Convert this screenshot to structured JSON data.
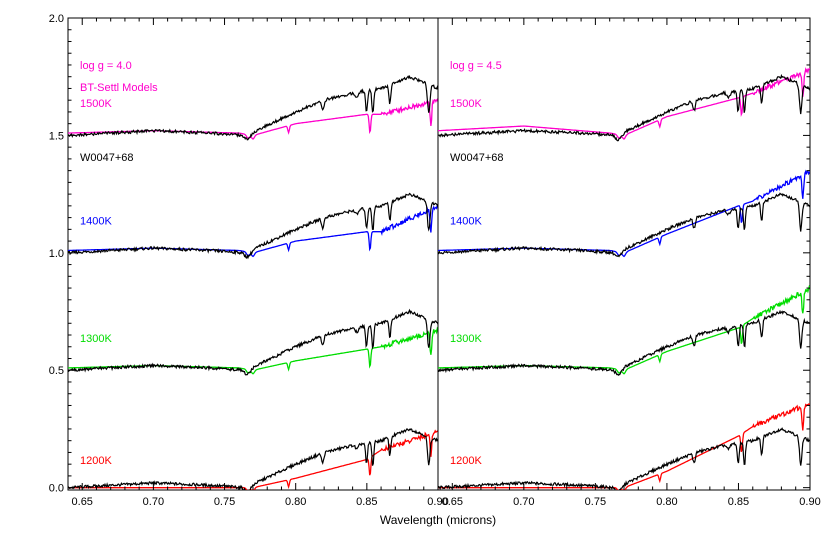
{
  "chart_data": {
    "type": "line",
    "xlabel": "Wavelength (microns)",
    "ylabel": "",
    "xlim": [
      0.64,
      0.9
    ],
    "ylim": [
      -0.01,
      2.0
    ],
    "x_ticks": [
      "0.65",
      "0.70",
      "0.75",
      "0.80",
      "0.85",
      "0.90"
    ],
    "y_ticks": [
      "0.0",
      "0.5",
      "1.0",
      "1.5",
      "2.0"
    ],
    "colors": {
      "observed": "#000000",
      "1500K": "#ff00cc",
      "1400K": "#0000ff",
      "1300K": "#00dd00",
      "1200K": "#ff0000"
    },
    "panels": [
      {
        "gravity_label": "log g = 4.0",
        "model_label": "BT-Settl Models",
        "object_label": "W0047+68",
        "temperature_labels": [
          {
            "text": "1500K",
            "color": "#ff00cc",
            "y": 1.62
          },
          {
            "text": "1400K",
            "color": "#0000ff",
            "y": 1.12
          },
          {
            "text": "1300K",
            "color": "#00dd00",
            "y": 0.62
          },
          {
            "text": "1200K",
            "color": "#ff0000",
            "y": 0.1
          }
        ],
        "observed_offsets": [
          1.5,
          1.0,
          0.5,
          0.0
        ],
        "models": [
          {
            "name": "1500K",
            "offset": 1.5,
            "points": [
              [
                0.64,
                1.51
              ],
              [
                0.7,
                1.52
              ],
              [
                0.76,
                1.51
              ],
              [
                0.77,
                1.5
              ],
              [
                0.8,
                1.55
              ],
              [
                0.85,
                1.59
              ],
              [
                0.86,
                1.59
              ],
              [
                0.9,
                1.65
              ]
            ]
          },
          {
            "name": "1400K",
            "offset": 1.0,
            "points": [
              [
                0.64,
                1.01
              ],
              [
                0.7,
                1.02
              ],
              [
                0.76,
                1.01
              ],
              [
                0.77,
                1.0
              ],
              [
                0.8,
                1.05
              ],
              [
                0.85,
                1.09
              ],
              [
                0.86,
                1.09
              ],
              [
                0.9,
                1.2
              ]
            ]
          },
          {
            "name": "1300K",
            "offset": 0.5,
            "points": [
              [
                0.64,
                0.51
              ],
              [
                0.7,
                0.52
              ],
              [
                0.76,
                0.51
              ],
              [
                0.77,
                0.5
              ],
              [
                0.8,
                0.54
              ],
              [
                0.85,
                0.59
              ],
              [
                0.86,
                0.6
              ],
              [
                0.9,
                0.67
              ]
            ]
          },
          {
            "name": "1200K",
            "offset": 0.0,
            "points": [
              [
                0.64,
                0.0
              ],
              [
                0.7,
                0.0
              ],
              [
                0.75,
                0.0
              ],
              [
                0.77,
                0.0
              ],
              [
                0.8,
                0.04
              ],
              [
                0.85,
                0.12
              ],
              [
                0.86,
                0.16
              ],
              [
                0.9,
                0.24
              ]
            ]
          }
        ]
      },
      {
        "gravity_label": "log g = 4.5",
        "model_label": "",
        "object_label": "W0047+68",
        "temperature_labels": [
          {
            "text": "1500K",
            "color": "#ff00cc",
            "y": 1.62
          },
          {
            "text": "1400K",
            "color": "#0000ff",
            "y": 1.12
          },
          {
            "text": "1300K",
            "color": "#00dd00",
            "y": 0.62
          },
          {
            "text": "1200K",
            "color": "#ff0000",
            "y": 0.1
          }
        ],
        "observed_offsets": [
          1.5,
          1.0,
          0.5,
          0.0
        ],
        "models": [
          {
            "name": "1500K",
            "offset": 1.5,
            "points": [
              [
                0.64,
                1.52
              ],
              [
                0.7,
                1.54
              ],
              [
                0.76,
                1.51
              ],
              [
                0.77,
                1.5
              ],
              [
                0.8,
                1.58
              ],
              [
                0.85,
                1.66
              ],
              [
                0.86,
                1.68
              ],
              [
                0.9,
                1.78
              ]
            ]
          },
          {
            "name": "1400K",
            "offset": 1.0,
            "points": [
              [
                0.64,
                1.01
              ],
              [
                0.7,
                1.02
              ],
              [
                0.76,
                1.01
              ],
              [
                0.77,
                1.0
              ],
              [
                0.8,
                1.08
              ],
              [
                0.85,
                1.2
              ],
              [
                0.86,
                1.22
              ],
              [
                0.9,
                1.35
              ]
            ]
          },
          {
            "name": "1300K",
            "offset": 0.5,
            "points": [
              [
                0.64,
                0.51
              ],
              [
                0.7,
                0.52
              ],
              [
                0.76,
                0.51
              ],
              [
                0.77,
                0.5
              ],
              [
                0.8,
                0.58
              ],
              [
                0.85,
                0.68
              ],
              [
                0.86,
                0.72
              ],
              [
                0.9,
                0.85
              ]
            ]
          },
          {
            "name": "1200K",
            "offset": 0.0,
            "points": [
              [
                0.64,
                0.0
              ],
              [
                0.7,
                0.0
              ],
              [
                0.75,
                0.0
              ],
              [
                0.77,
                0.0
              ],
              [
                0.8,
                0.07
              ],
              [
                0.85,
                0.22
              ],
              [
                0.86,
                0.26
              ],
              [
                0.9,
                0.36
              ]
            ]
          }
        ]
      }
    ],
    "observed_shape": [
      [
        0.64,
        0.0
      ],
      [
        0.7,
        0.02
      ],
      [
        0.74,
        0.01
      ],
      [
        0.765,
        0.0
      ],
      [
        0.8,
        0.1
      ],
      [
        0.82,
        0.15
      ],
      [
        0.84,
        0.18
      ],
      [
        0.86,
        0.2
      ],
      [
        0.88,
        0.25
      ],
      [
        0.9,
        0.2
      ]
    ]
  }
}
